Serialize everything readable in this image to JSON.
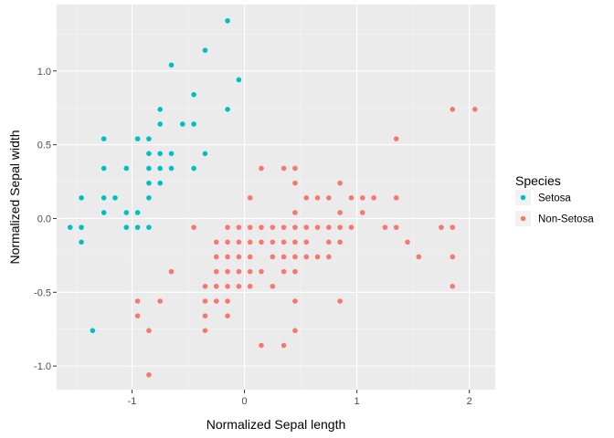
{
  "chart_data": {
    "type": "scatter",
    "title": "",
    "xlabel": "Normalized Sepal length",
    "ylabel": "Normalized Sepal width",
    "xlim": [
      -1.67,
      2.23
    ],
    "ylim": [
      -1.16,
      1.45
    ],
    "x_ticks": [
      -1,
      0,
      1,
      2
    ],
    "x_tick_labels": [
      "-1",
      "0",
      "1",
      "2"
    ],
    "y_ticks": [
      -1.0,
      -0.5,
      0.0,
      0.5,
      1.0
    ],
    "y_tick_labels": [
      "-1.0",
      "-0.5",
      "0.0",
      "0.5",
      "1.0"
    ],
    "grid": true,
    "legend": {
      "title": "Species",
      "position": "right",
      "entries": [
        "Setosa",
        "Non-Setosa"
      ]
    },
    "series": [
      {
        "name": "Setosa",
        "color": "#00BFC4",
        "points": [
          [
            -1.55,
            -0.06
          ],
          [
            -1.45,
            0.14
          ],
          [
            -1.45,
            -0.06
          ],
          [
            -1.45,
            -0.16
          ],
          [
            -1.35,
            -0.76
          ],
          [
            -1.25,
            0.54
          ],
          [
            -1.25,
            0.34
          ],
          [
            -1.25,
            0.14
          ],
          [
            -1.25,
            0.04
          ],
          [
            -1.15,
            0.14
          ],
          [
            -1.05,
            0.34
          ],
          [
            -1.05,
            0.04
          ],
          [
            -1.05,
            -0.06
          ],
          [
            -0.95,
            0.54
          ],
          [
            -0.95,
            0.04
          ],
          [
            -0.95,
            -0.06
          ],
          [
            -0.85,
            0.54
          ],
          [
            -0.85,
            0.44
          ],
          [
            -0.85,
            0.34
          ],
          [
            -0.85,
            0.24
          ],
          [
            -0.85,
            0.14
          ],
          [
            -0.85,
            -0.06
          ],
          [
            -0.75,
            0.74
          ],
          [
            -0.75,
            0.64
          ],
          [
            -0.75,
            0.44
          ],
          [
            -0.75,
            0.34
          ],
          [
            -0.75,
            0.24
          ],
          [
            -0.65,
            1.04
          ],
          [
            -0.65,
            0.44
          ],
          [
            -0.65,
            0.34
          ],
          [
            -0.55,
            0.64
          ],
          [
            -0.45,
            0.84
          ],
          [
            -0.45,
            0.64
          ],
          [
            -0.45,
            0.34
          ],
          [
            -0.35,
            1.14
          ],
          [
            -0.35,
            0.44
          ],
          [
            -0.15,
            1.34
          ],
          [
            -0.15,
            0.74
          ],
          [
            -0.05,
            0.94
          ]
        ]
      },
      {
        "name": "Non-Setosa",
        "color": "#F8766D",
        "points": [
          [
            -0.95,
            -0.56
          ],
          [
            -0.95,
            -0.66
          ],
          [
            -0.85,
            -0.76
          ],
          [
            -0.85,
            -1.06
          ],
          [
            -0.75,
            -0.56
          ],
          [
            -0.65,
            -0.36
          ],
          [
            -0.45,
            -0.06
          ],
          [
            -0.35,
            -0.46
          ],
          [
            -0.35,
            -0.56
          ],
          [
            -0.35,
            -0.66
          ],
          [
            -0.35,
            -0.76
          ],
          [
            -0.25,
            -0.16
          ],
          [
            -0.25,
            -0.26
          ],
          [
            -0.25,
            -0.36
          ],
          [
            -0.25,
            -0.46
          ],
          [
            -0.25,
            -0.56
          ],
          [
            -0.15,
            -0.06
          ],
          [
            -0.15,
            -0.16
          ],
          [
            -0.15,
            -0.26
          ],
          [
            -0.15,
            -0.36
          ],
          [
            -0.15,
            -0.46
          ],
          [
            -0.15,
            -0.56
          ],
          [
            -0.15,
            -0.66
          ],
          [
            -0.05,
            -0.06
          ],
          [
            -0.05,
            -0.16
          ],
          [
            -0.05,
            -0.26
          ],
          [
            -0.05,
            -0.36
          ],
          [
            -0.05,
            -0.46
          ],
          [
            0.05,
            0.14
          ],
          [
            0.05,
            -0.06
          ],
          [
            0.05,
            -0.16
          ],
          [
            0.05,
            -0.26
          ],
          [
            0.05,
            -0.36
          ],
          [
            0.05,
            -0.46
          ],
          [
            0.15,
            0.34
          ],
          [
            0.15,
            -0.06
          ],
          [
            0.15,
            -0.16
          ],
          [
            0.15,
            -0.36
          ],
          [
            0.15,
            -0.86
          ],
          [
            0.25,
            -0.06
          ],
          [
            0.25,
            -0.16
          ],
          [
            0.25,
            -0.26
          ],
          [
            0.25,
            -0.46
          ],
          [
            0.35,
            0.34
          ],
          [
            0.35,
            -0.06
          ],
          [
            0.35,
            -0.16
          ],
          [
            0.35,
            -0.26
          ],
          [
            0.35,
            -0.36
          ],
          [
            0.35,
            -0.86
          ],
          [
            0.45,
            0.34
          ],
          [
            0.45,
            0.24
          ],
          [
            0.45,
            0.04
          ],
          [
            0.45,
            -0.06
          ],
          [
            0.45,
            -0.16
          ],
          [
            0.45,
            -0.26
          ],
          [
            0.45,
            -0.36
          ],
          [
            0.45,
            -0.56
          ],
          [
            0.45,
            -0.76
          ],
          [
            0.55,
            0.14
          ],
          [
            0.55,
            -0.06
          ],
          [
            0.55,
            -0.16
          ],
          [
            0.55,
            -0.26
          ],
          [
            0.65,
            0.14
          ],
          [
            0.65,
            -0.06
          ],
          [
            0.65,
            -0.26
          ],
          [
            0.75,
            0.14
          ],
          [
            0.75,
            -0.06
          ],
          [
            0.75,
            -0.16
          ],
          [
            0.75,
            -0.26
          ],
          [
            0.85,
            0.24
          ],
          [
            0.85,
            0.04
          ],
          [
            0.85,
            -0.06
          ],
          [
            0.85,
            -0.16
          ],
          [
            0.85,
            -0.56
          ],
          [
            0.95,
            0.14
          ],
          [
            0.95,
            -0.06
          ],
          [
            1.05,
            0.14
          ],
          [
            1.05,
            0.04
          ],
          [
            1.15,
            0.14
          ],
          [
            1.25,
            -0.06
          ],
          [
            1.35,
            0.54
          ],
          [
            1.35,
            0.14
          ],
          [
            1.35,
            -0.06
          ],
          [
            1.45,
            -0.16
          ],
          [
            1.55,
            -0.26
          ],
          [
            1.75,
            -0.06
          ],
          [
            1.85,
            0.74
          ],
          [
            1.85,
            -0.06
          ],
          [
            1.85,
            -0.26
          ],
          [
            1.85,
            -0.46
          ],
          [
            2.05,
            0.74
          ]
        ]
      }
    ]
  }
}
